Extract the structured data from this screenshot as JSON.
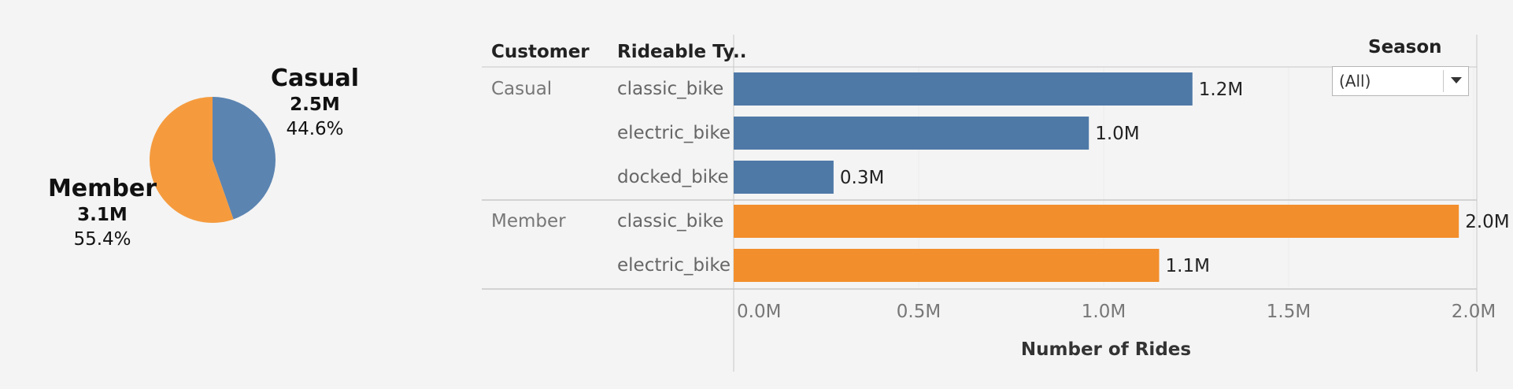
{
  "colors": {
    "casual": "#4e79a7",
    "member": "#f28e2b"
  },
  "pie": {
    "slices": [
      {
        "name": "Casual",
        "value_label": "2.5M",
        "percent_label": "44.6%",
        "percent": 44.6,
        "color": "#5b84b1"
      },
      {
        "name": "Member",
        "value_label": "3.1M",
        "percent_label": "55.4%",
        "percent": 55.4,
        "color": "#f59b3e"
      }
    ]
  },
  "table": {
    "customer_header": "Customer",
    "rideable_header": "Rideable Ty..",
    "season_header": "Season"
  },
  "filter": {
    "selected": "(All)"
  },
  "chart_data": [
    {
      "type": "pie",
      "categories": [
        "Casual",
        "Member"
      ],
      "values": [
        2.5,
        3.1
      ],
      "percentages": [
        44.6,
        55.4
      ],
      "value_labels": [
        "2.5M",
        "3.1M"
      ]
    },
    {
      "type": "bar",
      "orientation": "horizontal",
      "xlabel": "Number of Rides",
      "xlim": [
        0,
        2.1
      ],
      "xticks": [
        0.0,
        0.5,
        1.0,
        1.5,
        2.0
      ],
      "xtick_labels": [
        "0.0M",
        "0.5M",
        "1.0M",
        "1.5M",
        "2.0M"
      ],
      "groups": [
        {
          "name": "Casual",
          "color": "#4e79a7",
          "categories": [
            "classic_bike",
            "electric_bike",
            "docked_bike"
          ],
          "values": [
            1.24,
            0.96,
            0.27
          ],
          "labels": [
            "1.2M",
            "1.0M",
            "0.3M"
          ]
        },
        {
          "name": "Member",
          "color": "#f28e2b",
          "categories": [
            "classic_bike",
            "electric_bike"
          ],
          "values": [
            1.96,
            1.15
          ],
          "labels": [
            "2.0M",
            "1.1M"
          ]
        }
      ]
    }
  ]
}
